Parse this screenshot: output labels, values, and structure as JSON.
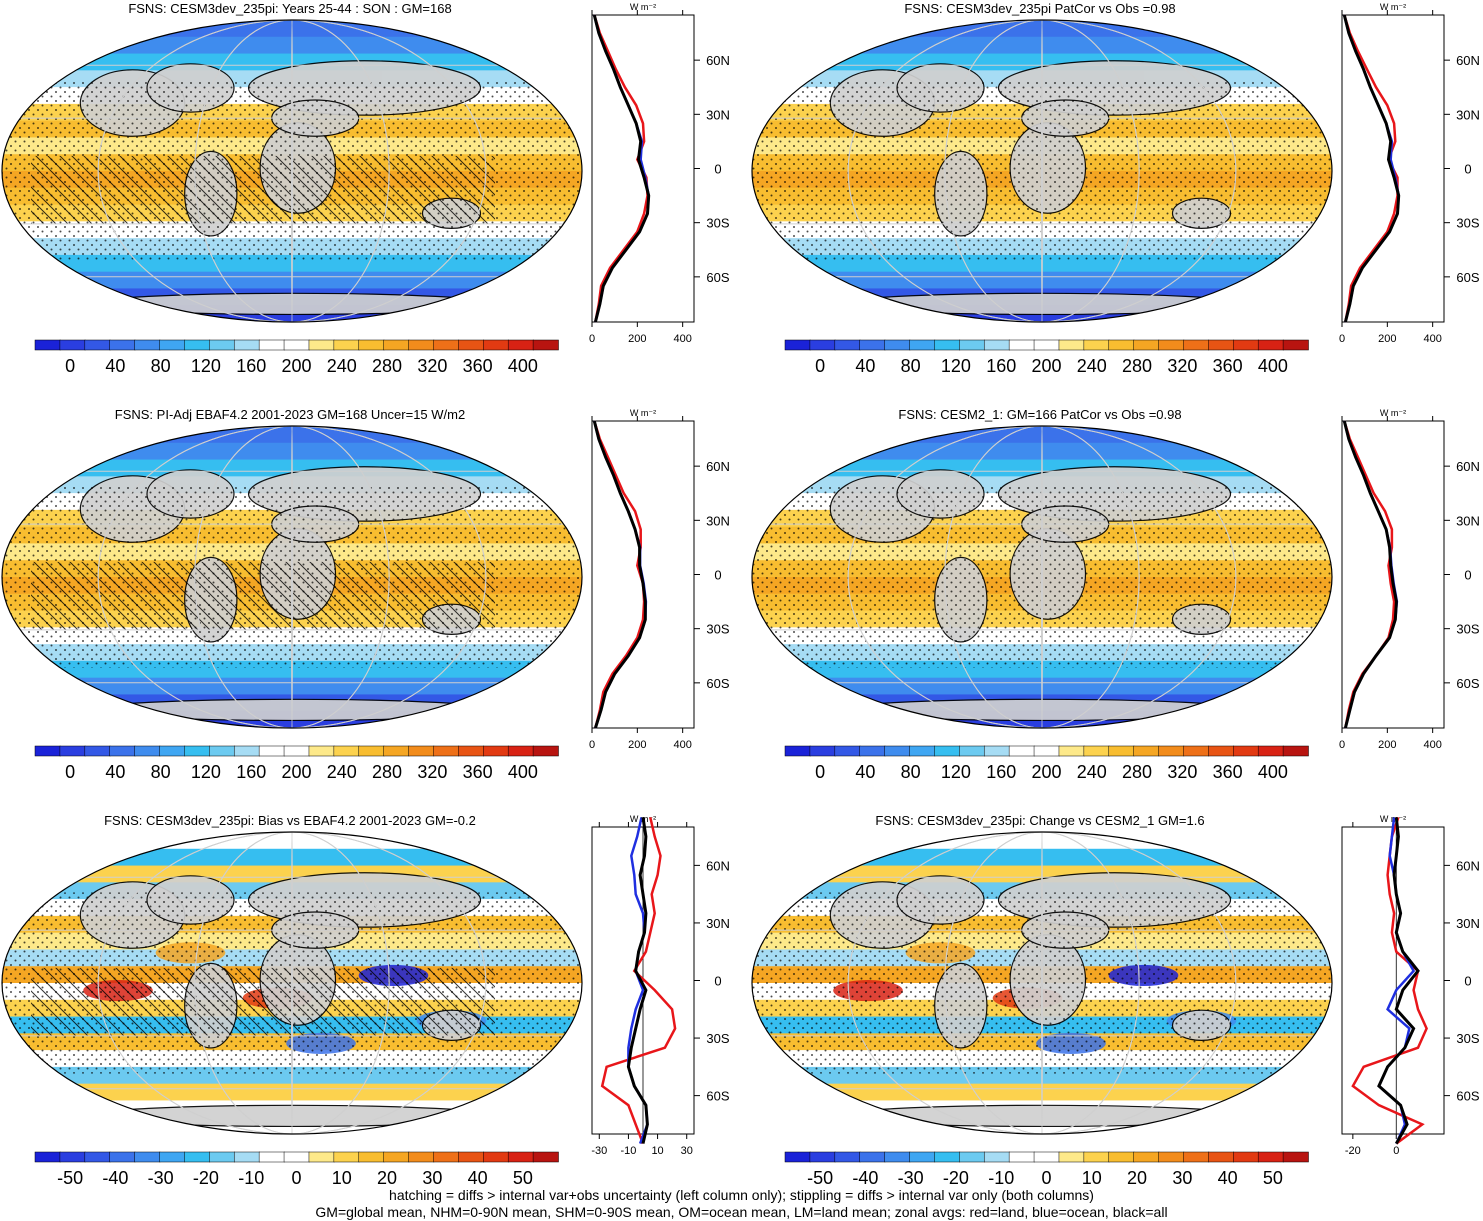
{
  "palette_abs": [
    "#1a22d8",
    "#2a3ee0",
    "#3358e6",
    "#3b72ea",
    "#3f8cee",
    "#3fa6f2",
    "#36bef0",
    "#6ccaf0",
    "#a6dcf4",
    "#ffffff",
    "#ffffff",
    "#fde98a",
    "#fcd24e",
    "#f8bd30",
    "#f5a623",
    "#f28c1c",
    "#ee7018",
    "#e85414",
    "#e23a12",
    "#d82214",
    "#b81410"
  ],
  "palette_diff": [
    "#1a22d8",
    "#2a3ee0",
    "#3358e6",
    "#3b72ea",
    "#3f8cee",
    "#3fa6f2",
    "#36bef0",
    "#6ccaf0",
    "#a6dcf4",
    "#ffffff",
    "#ffffff",
    "#fde98a",
    "#fcd24e",
    "#f8bd30",
    "#f5a623",
    "#f28c1c",
    "#ee7018",
    "#e85414",
    "#e23a12",
    "#d82214",
    "#b81410"
  ],
  "colors": {
    "land": "#d0d0d0",
    "zonal_land": "#e8161a",
    "zonal_ocean": "#1f2fe0",
    "zonal_all": "#000000"
  },
  "lat_labels": [
    "60N",
    "30N",
    "0",
    "30S",
    "60S"
  ],
  "zonal_unit": "W m⁻²",
  "chart_data": [
    {
      "type": "heatmap",
      "title": "FSNS: CESM3dev_235pi: Years 25-44 : SON : GM=168",
      "kind": "abs",
      "hatch": true,
      "colorbar": {
        "ticks": [
          "0",
          "40",
          "80",
          "120",
          "160",
          "200",
          "240",
          "280",
          "320",
          "360",
          "400"
        ]
      },
      "zonal": {
        "xticks": [
          "0",
          "200",
          "400"
        ],
        "xlim": [
          0,
          450
        ],
        "lat": [
          85,
          75,
          65,
          55,
          45,
          35,
          25,
          15,
          5,
          -5,
          -15,
          -25,
          -35,
          -45,
          -55,
          -65,
          -75,
          -85
        ],
        "all": [
          10,
          30,
          60,
          95,
          125,
          160,
          195,
          215,
          205,
          230,
          250,
          245,
          210,
          150,
          90,
          50,
          35,
          15
        ],
        "land": [
          10,
          35,
          70,
          105,
          145,
          195,
          225,
          230,
          200,
          240,
          245,
          230,
          200,
          140,
          80,
          40,
          30,
          15
        ],
        "ocean": [
          10,
          30,
          60,
          95,
          125,
          160,
          195,
          220,
          215,
          235,
          250,
          245,
          210,
          150,
          90,
          50,
          35,
          15
        ]
      }
    },
    {
      "type": "heatmap",
      "title": "FSNS: CESM3dev_235pi PatCor vs Obs =0.98",
      "kind": "abs",
      "hatch": false,
      "colorbar": {
        "ticks": [
          "0",
          "40",
          "80",
          "120",
          "160",
          "200",
          "240",
          "280",
          "320",
          "360",
          "400"
        ]
      },
      "zonal": {
        "xticks": [
          "0",
          "200",
          "400"
        ],
        "xlim": [
          0,
          450
        ],
        "lat": [
          85,
          75,
          65,
          55,
          45,
          35,
          25,
          15,
          5,
          -5,
          -15,
          -25,
          -35,
          -45,
          -55,
          -65,
          -75,
          -85
        ],
        "all": [
          10,
          30,
          60,
          95,
          125,
          160,
          195,
          215,
          205,
          230,
          250,
          245,
          210,
          150,
          90,
          50,
          35,
          15
        ],
        "land": [
          10,
          35,
          70,
          110,
          150,
          200,
          230,
          235,
          205,
          245,
          245,
          230,
          200,
          140,
          80,
          40,
          30,
          15
        ],
        "ocean": [
          10,
          30,
          60,
          95,
          125,
          160,
          195,
          220,
          215,
          235,
          250,
          245,
          210,
          150,
          90,
          50,
          35,
          15
        ]
      }
    },
    {
      "type": "heatmap",
      "title": "FSNS: PI-Adj EBAF4.2 2001-2023 GM=168 Uncer=15 W/m2",
      "kind": "abs",
      "hatch": true,
      "colorbar": {
        "ticks": [
          "0",
          "40",
          "80",
          "120",
          "160",
          "200",
          "240",
          "280",
          "320",
          "360",
          "400"
        ]
      },
      "zonal": {
        "xticks": [
          "0",
          "200",
          "400"
        ],
        "xlim": [
          0,
          450
        ],
        "lat": [
          85,
          75,
          65,
          55,
          45,
          35,
          25,
          15,
          5,
          -5,
          -15,
          -25,
          -35,
          -45,
          -55,
          -65,
          -75,
          -85
        ],
        "all": [
          10,
          30,
          60,
          95,
          125,
          160,
          190,
          210,
          210,
          225,
          235,
          235,
          210,
          160,
          100,
          60,
          40,
          15
        ],
        "land": [
          10,
          35,
          70,
          105,
          140,
          190,
          215,
          215,
          200,
          225,
          230,
          225,
          200,
          150,
          90,
          50,
          35,
          15
        ],
        "ocean": [
          10,
          30,
          60,
          95,
          125,
          160,
          190,
          212,
          212,
          228,
          238,
          235,
          210,
          160,
          100,
          60,
          40,
          15
        ]
      }
    },
    {
      "type": "heatmap",
      "title": "FSNS: CESM2_1: GM=166 PatCor vs Obs =0.98",
      "kind": "abs",
      "hatch": false,
      "colorbar": {
        "ticks": [
          "0",
          "40",
          "80",
          "120",
          "160",
          "200",
          "240",
          "280",
          "320",
          "360",
          "400"
        ]
      },
      "zonal": {
        "xticks": [
          "0",
          "200",
          "400"
        ],
        "xlim": [
          0,
          450
        ],
        "lat": [
          85,
          75,
          65,
          55,
          45,
          35,
          25,
          15,
          5,
          -5,
          -15,
          -25,
          -35,
          -45,
          -55,
          -65,
          -75,
          -85
        ],
        "all": [
          10,
          30,
          60,
          95,
          125,
          160,
          195,
          210,
          215,
          225,
          240,
          235,
          210,
          150,
          95,
          55,
          35,
          15
        ],
        "land": [
          10,
          35,
          70,
          105,
          140,
          190,
          220,
          220,
          205,
          215,
          230,
          225,
          205,
          150,
          90,
          50,
          30,
          15
        ],
        "ocean": [
          10,
          30,
          60,
          95,
          125,
          160,
          195,
          212,
          218,
          228,
          242,
          235,
          210,
          150,
          95,
          55,
          35,
          15
        ]
      }
    },
    {
      "type": "heatmap",
      "title": "FSNS: CESM3dev_235pi: Bias vs EBAF4.2 2001-2023  GM=-0.2",
      "kind": "diff",
      "hatch": true,
      "colorbar": {
        "ticks": [
          "-50",
          "-40",
          "-30",
          "-20",
          "-10",
          "0",
          "10",
          "20",
          "30",
          "40",
          "50"
        ]
      },
      "zonal": {
        "xticks": [
          "-30",
          "-10",
          "10",
          "30"
        ],
        "xlim": [
          -35,
          35
        ],
        "lat": [
          85,
          75,
          65,
          55,
          45,
          35,
          25,
          15,
          5,
          -5,
          -15,
          -25,
          -35,
          -45,
          -55,
          -65,
          -75,
          -85
        ],
        "all": [
          0,
          2,
          1,
          -2,
          0,
          2,
          1,
          -3,
          -5,
          2,
          -2,
          -5,
          -8,
          -10,
          -6,
          2,
          3,
          0
        ],
        "land": [
          5,
          8,
          12,
          10,
          6,
          8,
          5,
          2,
          -6,
          8,
          20,
          22,
          15,
          -25,
          -28,
          -10,
          -5,
          0
        ],
        "ocean": [
          -1,
          -4,
          -8,
          -6,
          -5,
          0,
          1,
          -3,
          -5,
          0,
          -5,
          -8,
          -10,
          -10,
          -6,
          2,
          3,
          -2
        ]
      }
    },
    {
      "type": "heatmap",
      "title": "FSNS: CESM3dev_235pi: Change vs CESM2_1 GM=1.6",
      "kind": "diff",
      "hatch": false,
      "colorbar": {
        "ticks": [
          "-50",
          "-40",
          "-30",
          "-20",
          "-10",
          "0",
          "10",
          "20",
          "30",
          "40",
          "50"
        ]
      },
      "zonal": {
        "xticks": [
          "-20",
          "0"
        ],
        "xlim": [
          -25,
          22
        ],
        "lat": [
          85,
          75,
          65,
          55,
          45,
          35,
          25,
          15,
          5,
          -5,
          -15,
          -25,
          -35,
          -45,
          -55,
          -65,
          -75,
          -85
        ],
        "all": [
          0,
          1,
          0,
          -1,
          0,
          2,
          0,
          3,
          10,
          3,
          0,
          8,
          4,
          -4,
          -8,
          2,
          5,
          0
        ],
        "land": [
          1,
          -2,
          -3,
          -4,
          -3,
          -1,
          -2,
          0,
          10,
          8,
          10,
          14,
          10,
          -15,
          -20,
          -8,
          12,
          0
        ],
        "ocean": [
          -1,
          -2,
          -3,
          -1,
          0,
          2,
          0,
          3,
          8,
          0,
          -4,
          6,
          4,
          -4,
          -8,
          2,
          4,
          0
        ]
      }
    }
  ],
  "footer": {
    "line1": "hatching = diffs > internal var+obs uncertainty (left column only); stippling = diffs > internal var only (both columns)",
    "line2": "GM=global mean, NHM=0-90N mean, SHM=0-90S mean, OM=ocean mean, LM=land mean; zonal avgs: red=land, blue=ocean, black=all"
  }
}
